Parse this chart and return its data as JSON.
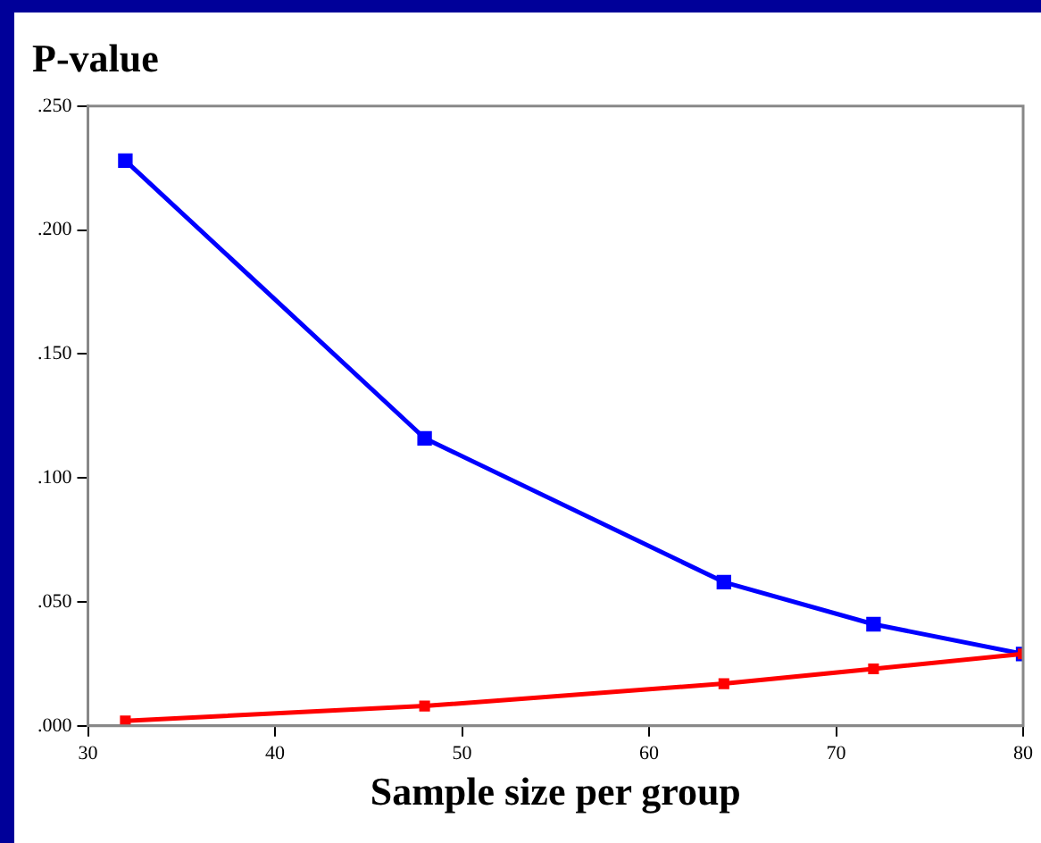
{
  "chart_data": {
    "type": "line",
    "title": "P-value",
    "xlabel": "Sample size per group",
    "x": [
      32,
      48,
      64,
      72,
      80
    ],
    "series": [
      {
        "color": "#0000ff",
        "values": [
          0.228,
          0.116,
          0.058,
          0.041,
          0.029
        ]
      },
      {
        "color": "#ff0000",
        "values": [
          0.002,
          0.008,
          0.017,
          0.023,
          0.029
        ]
      }
    ],
    "xlim": [
      30,
      80
    ],
    "xticks": [
      30,
      40,
      50,
      60,
      70,
      80
    ],
    "ylim": [
      0,
      0.25
    ],
    "yticks": [
      {
        "value": 0,
        "label": ".000"
      },
      {
        "value": 0.05,
        "label": ".050"
      },
      {
        "value": 0.1,
        "label": ".100"
      },
      {
        "value": 0.15,
        "label": ".150"
      },
      {
        "value": 0.2,
        "label": ".200"
      },
      {
        "value": 0.25,
        "label": ".250"
      }
    ],
    "grid": false,
    "legend": false,
    "marker": "square",
    "line_style": "solid"
  }
}
